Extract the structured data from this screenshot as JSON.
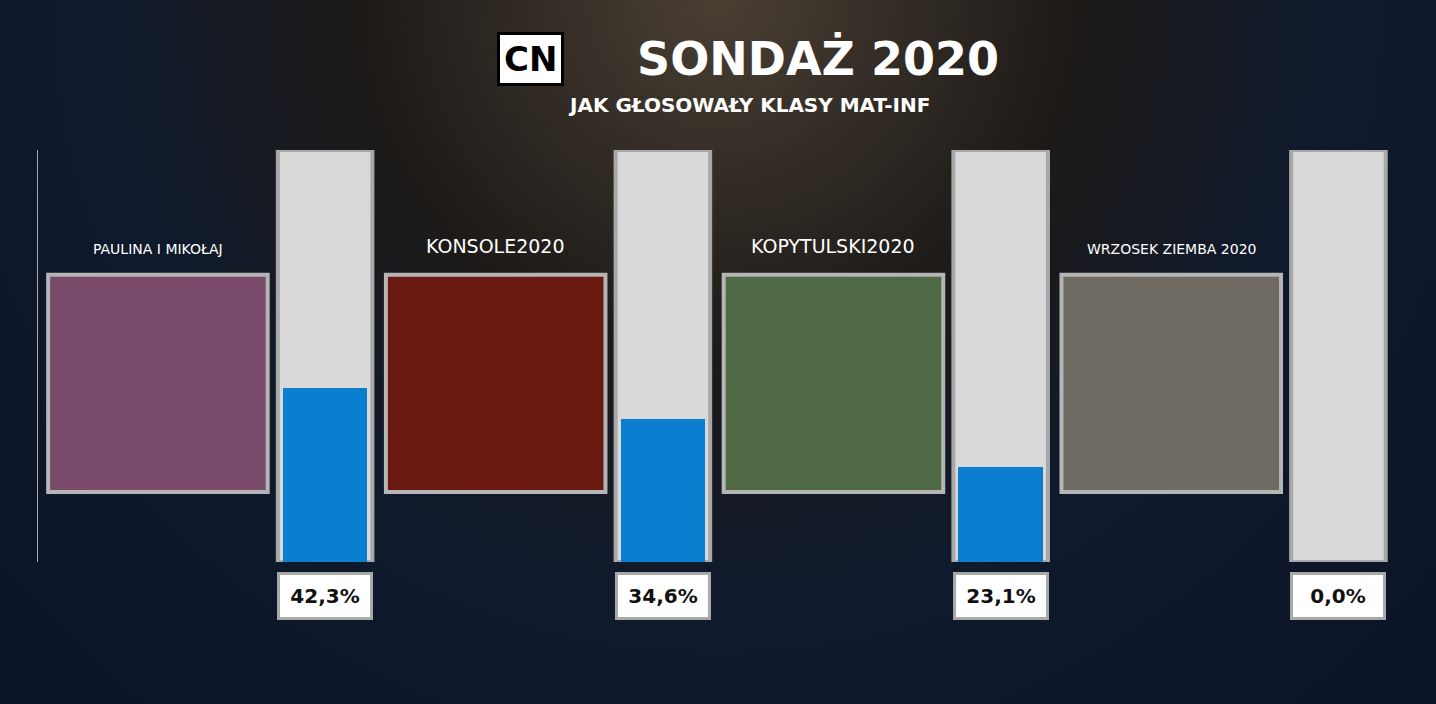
{
  "chart_data": {
    "type": "bar",
    "title": "SONDAŻ 2020",
    "subtitle": "JAK GŁOSOWAŁY KLASY MAT-INF",
    "annotations": [
      "CN"
    ],
    "categories": [
      "PAULINA I MIKOŁAJ",
      "KONSOLE2020",
      "KOPYTULSKI2020",
      "WRZOSEK ZIEMBA 2020"
    ],
    "values": [
      42.3,
      34.6,
      23.1,
      0.0
    ],
    "value_labels": [
      "42,3%",
      "34,6%",
      "23,1%",
      "0,0%"
    ],
    "color": "#0a7fd0",
    "ylim": [
      0,
      100
    ],
    "data_labels": true,
    "tick_labels": false,
    "grid": false
  }
}
